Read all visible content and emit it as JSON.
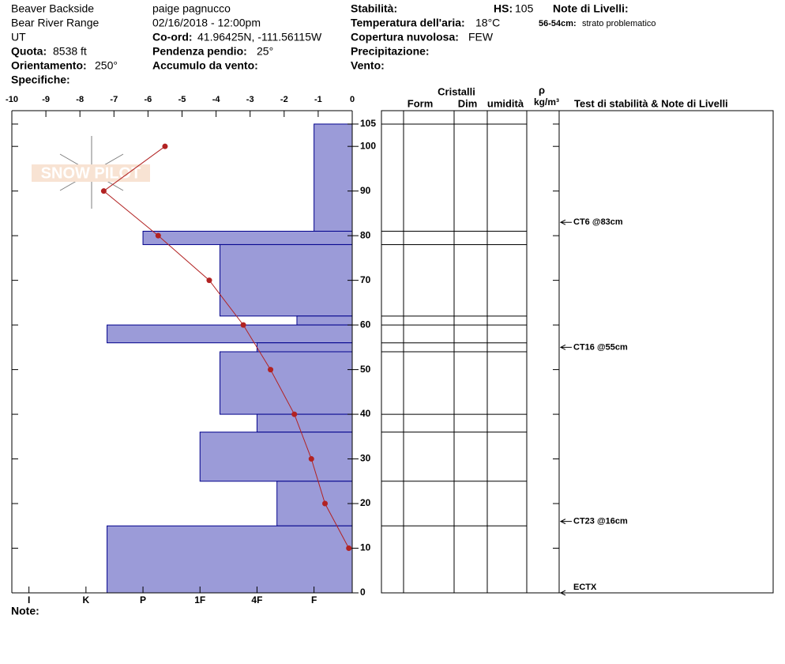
{
  "header": {
    "location": "Beaver Backside",
    "observer": "paige pagnucco",
    "range": "Bear River Range",
    "datetime": "02/16/2018 - 12:00pm",
    "state": "UT",
    "coord_label": "Co-ord:",
    "coord": "41.96425N, -111.56115W",
    "elevation_label": "Quota:",
    "elevation": "8538 ft",
    "slope_label": "Pendenza pendio:",
    "slope": "25°",
    "aspect_label": "Orientamento:",
    "aspect": "250°",
    "wind_loading_label": "Accumulo da vento:",
    "specifics_label": "Specifiche:",
    "stability_label": "Stabilità:",
    "hs_label": "HS:",
    "hs": 105,
    "layer_notes_label": "Note di Livelli:",
    "air_temp_label": "Temperatura dell'aria:",
    "air_temp": "18°C",
    "layer_note_depth": "56-54cm:",
    "layer_note": "strato problematico",
    "cloud_label": "Copertura nuvolosa:",
    "cloud": "FEW",
    "precip_label": "Precipitazione:",
    "wind_label": "Vento:",
    "watermark": "SNOW PILOT",
    "note_label": "Note:"
  },
  "chart_data": {
    "type": "snow_profile",
    "xlim": [
      -10,
      0
    ],
    "xticks": [
      -10,
      -9,
      -8,
      -7,
      -6,
      -5,
      -4,
      -3,
      -2,
      -1,
      0
    ],
    "ylim": [
      0,
      108
    ],
    "yticks": [
      0,
      10,
      20,
      30,
      40,
      50,
      60,
      70,
      80,
      90,
      100,
      105
    ],
    "hardness_lim": [
      0.33,
      6.3
    ],
    "hardness_ticks": [
      {
        "value": 6,
        "label": "I"
      },
      {
        "value": 5,
        "label": "K"
      },
      {
        "value": 4,
        "label": "P"
      },
      {
        "value": 3,
        "label": "1F"
      },
      {
        "value": 2,
        "label": "4F"
      },
      {
        "value": 1,
        "label": "F"
      }
    ],
    "temperature": {
      "color": "#b22222",
      "depths": [
        100,
        90,
        80,
        70,
        60,
        50,
        40,
        30,
        20,
        10
      ],
      "values": [
        -5.5,
        -7.3,
        -5.7,
        -4.2,
        -3.2,
        -2.4,
        -1.7,
        -1.2,
        -0.8,
        -0.1
      ]
    },
    "layers": {
      "color": "#9b9bd8",
      "tops": [
        105,
        81,
        78,
        62,
        60,
        56,
        54,
        40,
        36,
        25,
        15
      ],
      "bottoms": [
        81,
        78,
        62,
        60,
        56,
        54,
        40,
        36,
        25,
        15,
        0
      ],
      "hardness": [
        1,
        4,
        2.65,
        1.3,
        4.63,
        2,
        2.65,
        2,
        3,
        1.65,
        4.63
      ]
    },
    "crystals_header": "Cristalli",
    "columns": [
      "Form",
      "Dim",
      "umidità"
    ],
    "density_symbol": "ρ",
    "density_unit": "kg/m³",
    "tests_header": "Test di stabilità & Note di Livelli",
    "tests": {
      "depths": [
        83,
        55,
        16,
        0
      ],
      "labels": [
        "CT6 @83cm",
        "CT16 @55cm",
        "CT23 @16cm",
        "ECTX"
      ]
    }
  }
}
